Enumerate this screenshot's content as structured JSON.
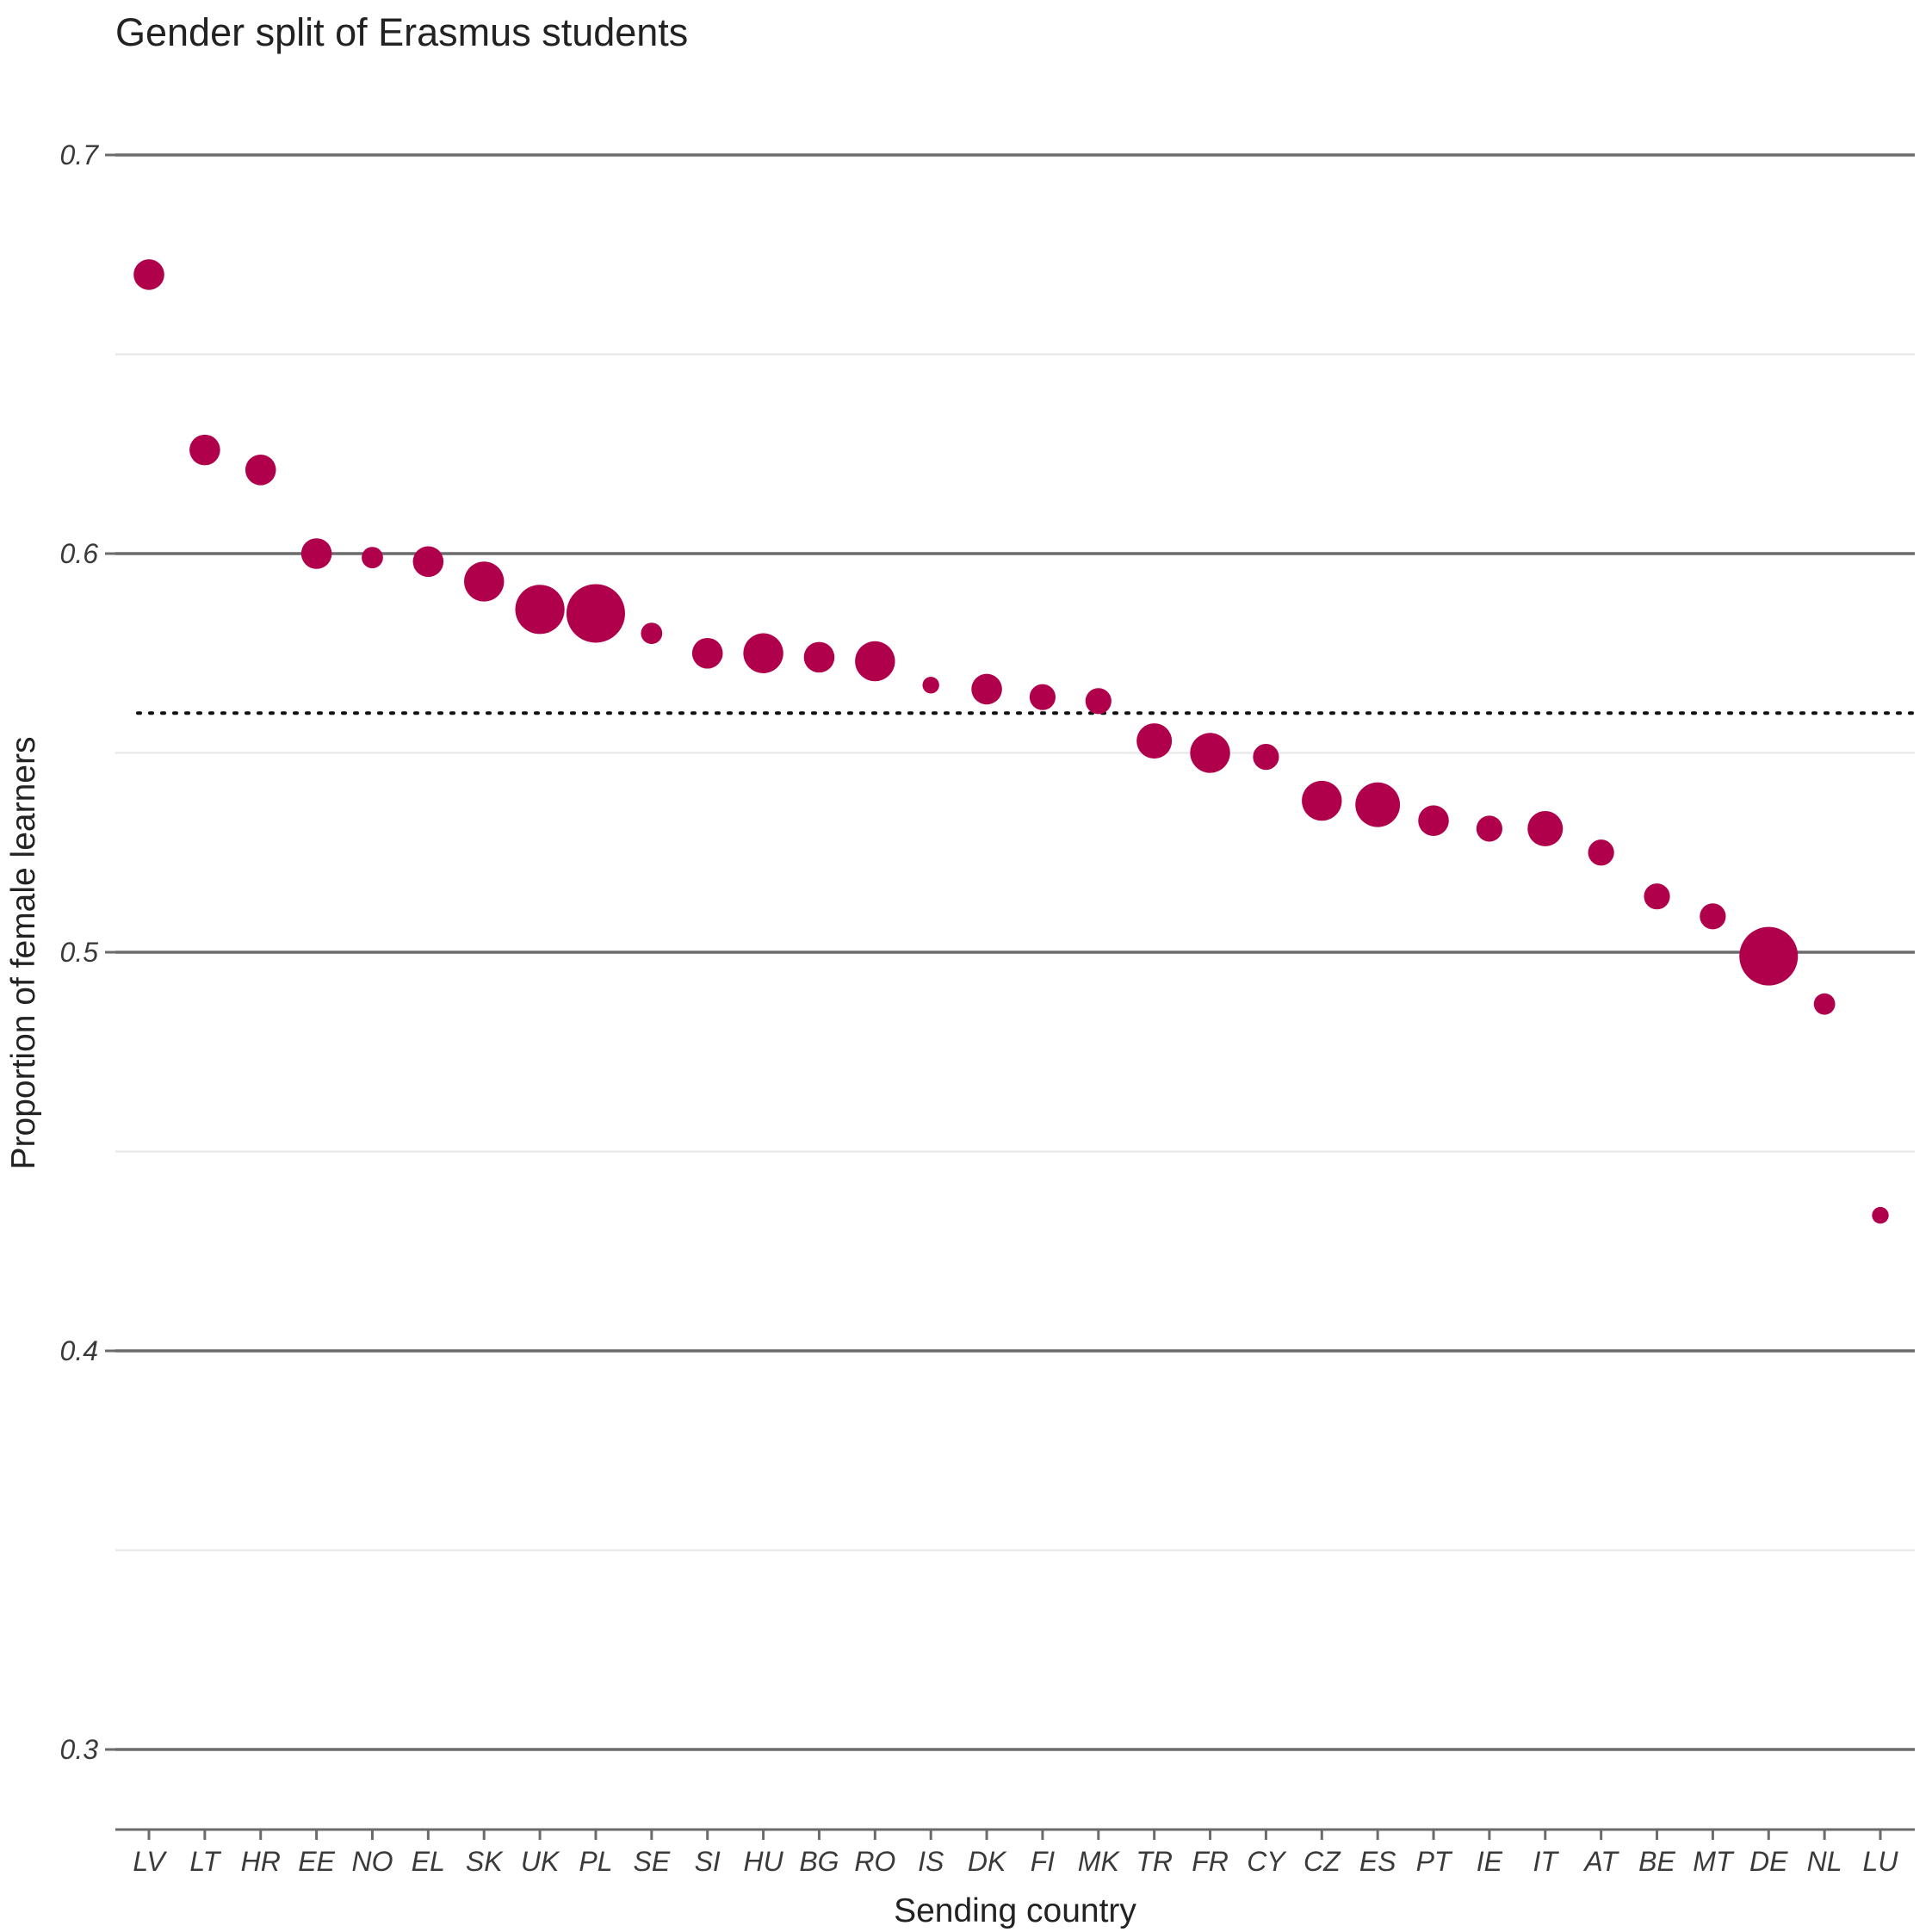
{
  "chart_data": {
    "type": "scatter",
    "title": "Gender split of Erasmus students",
    "xlabel": "Sending country",
    "ylabel": "Proportion of female learners",
    "ylim": [
      0.28,
      0.72
    ],
    "y_major_ticks": [
      0.3,
      0.4,
      0.5,
      0.6,
      0.7
    ],
    "y_tick_labels": [
      "0.3",
      "0.4",
      "0.5",
      "0.6",
      "0.7"
    ],
    "y_minor_ticks": [
      0.35,
      0.45,
      0.55,
      0.65
    ],
    "reference_line": {
      "y": 0.56,
      "style": "dotted"
    },
    "grid": true,
    "legend": "none",
    "point_color": "#b0004b",
    "categories": [
      "LV",
      "LT",
      "HR",
      "EE",
      "NO",
      "EL",
      "SK",
      "UK",
      "PL",
      "SE",
      "SI",
      "HU",
      "BG",
      "RO",
      "IS",
      "DK",
      "FI",
      "MK",
      "TR",
      "FR",
      "CY",
      "CZ",
      "ES",
      "PT",
      "IE",
      "IT",
      "AT",
      "BE",
      "MT",
      "DE",
      "NL",
      "LU"
    ],
    "values": [
      0.67,
      0.626,
      0.621,
      0.6,
      0.599,
      0.598,
      0.593,
      0.586,
      0.585,
      0.58,
      0.575,
      0.575,
      0.574,
      0.573,
      0.567,
      0.566,
      0.564,
      0.563,
      0.553,
      0.55,
      0.549,
      0.538,
      0.537,
      0.533,
      0.531,
      0.531,
      0.525,
      0.514,
      0.509,
      0.499,
      0.487,
      0.434
    ],
    "size_scale": [
      2,
      2,
      2,
      2,
      1,
      2,
      3,
      4,
      5,
      1,
      2,
      3,
      2,
      3,
      0.5,
      2,
      1.5,
      1.5,
      2.5,
      3,
      1.5,
      3,
      3.5,
      2,
      1.5,
      2.5,
      1.5,
      1.5,
      1.5,
      5,
      1,
      0.5
    ]
  }
}
